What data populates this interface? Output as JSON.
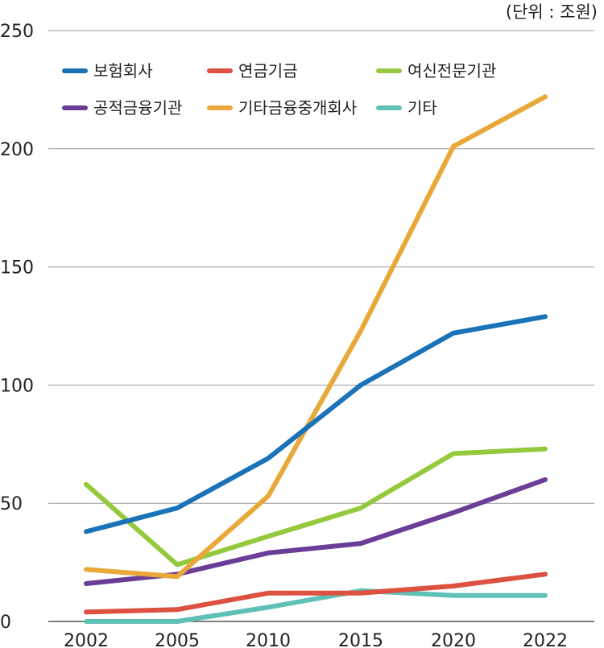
{
  "chart_data": {
    "type": "line",
    "unit": "(단위 : 조원)",
    "x": [
      "2002",
      "2005",
      "2010",
      "2015",
      "2020",
      "2022"
    ],
    "ylim": [
      0,
      250
    ],
    "yticks": [
      0,
      50,
      100,
      150,
      200,
      250
    ],
    "grid": true,
    "legend_position": "top-left",
    "series": [
      {
        "name": "보험회사",
        "color": "#1a73b8",
        "values": [
          38,
          48,
          69,
          100,
          122,
          129
        ]
      },
      {
        "name": "연금기금",
        "color": "#de5040",
        "values": [
          4,
          5,
          12,
          12,
          15,
          20
        ]
      },
      {
        "name": "여신전문기관",
        "color": "#95c93d",
        "values": [
          58,
          24,
          36,
          48,
          71,
          73
        ]
      },
      {
        "name": "공적금융기관",
        "color": "#6a3d96",
        "values": [
          16,
          20,
          29,
          33,
          46,
          60
        ]
      },
      {
        "name": "기타금융중개회사",
        "color": "#e8a93a",
        "values": [
          22,
          19,
          53,
          123,
          201,
          222
        ]
      },
      {
        "name": "기타",
        "color": "#5fc1b5",
        "values": [
          0,
          0,
          6,
          13,
          11,
          11
        ]
      }
    ]
  }
}
